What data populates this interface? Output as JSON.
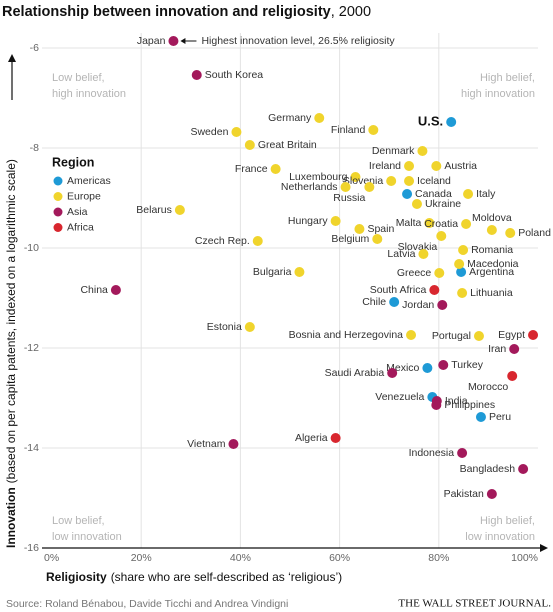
{
  "chart_data": {
    "type": "scatter",
    "title": "Relationship between innovation and religiosity",
    "title_suffix": ", 2000",
    "x_label": "Religiosity",
    "x_label_note": "(share who are self-described as ‘religious’)",
    "y_label": "Innovation",
    "y_label_note": "(based on per capita patents, indexed on a logarithmic scale)",
    "annotation": "Highest innovation level, 26.5% religiosity",
    "quadrant_labels": [
      [
        "Low belief,",
        "high innovation"
      ],
      [
        "High belief,",
        "high innovation"
      ],
      [
        "Low belief,",
        "low innovation"
      ],
      [
        "High belief,",
        "low innovation"
      ]
    ],
    "legend_title": "Region",
    "source": "Source: Roland Bénabou, Davide Ticchi and Andrea Vindigni",
    "publisher": "THE WALL STREET JOURNAL.",
    "xlim": [
      0,
      100
    ],
    "ylim": [
      -16,
      -5.7
    ],
    "xticks": [
      {
        "value": 0,
        "label": "0%"
      },
      {
        "value": 20,
        "label": "20%"
      },
      {
        "value": 40,
        "label": "40%"
      },
      {
        "value": 60,
        "label": "60%"
      },
      {
        "value": 80,
        "label": "80%"
      },
      {
        "value": 100,
        "label": "100%"
      }
    ],
    "yticks": [
      -6,
      -8,
      -10,
      -12,
      -14,
      -16
    ],
    "grid": true,
    "series": [
      {
        "name": "Americas",
        "color": "#1e9ad6",
        "labels": [
          "U.S.",
          "Canada",
          "Argentina",
          "Chile",
          "Mexico",
          "Venezuela",
          "Peru"
        ],
        "x": [
          82.5,
          73.6,
          84.5,
          71.0,
          77.7,
          78.7,
          88.5
        ],
        "values": [
          -7.48,
          -8.92,
          -10.48,
          -11.08,
          -12.4,
          -12.98,
          -13.38
        ]
      },
      {
        "name": "Europe",
        "color": "#f0d42c",
        "labels": [
          "Germany",
          "Finland",
          "Sweden",
          "Great Britain",
          "Denmark",
          "Ireland",
          "Austria",
          "France",
          "Luxembourg",
          "Slovenia",
          "Iceland",
          "Netherlands",
          "Russia",
          "Ukraine",
          "Italy",
          "Belarus",
          "Hungary",
          "Spain",
          "Malta",
          "Croatia",
          "Moldova",
          "Poland",
          "Belgium",
          "Slovakia",
          "Czech Rep.",
          "Latvia",
          "Romania",
          "Macedonia",
          "Greece",
          "Bulgaria",
          "Lithuania",
          "Estonia",
          "Bosnia and Herzegovina",
          "Portugal"
        ],
        "x": [
          55.9,
          66.8,
          39.2,
          41.9,
          76.7,
          74.0,
          79.5,
          47.1,
          63.2,
          70.4,
          74.0,
          61.2,
          66.0,
          75.6,
          85.9,
          27.8,
          59.2,
          64.0,
          78.1,
          85.5,
          90.7,
          94.4,
          67.6,
          80.5,
          43.5,
          76.9,
          84.9,
          84.1,
          80.1,
          51.9,
          84.7,
          41.9,
          74.4,
          88.1
        ],
        "values": [
          -7.4,
          -7.64,
          -7.68,
          -7.94,
          -8.06,
          -8.36,
          -8.36,
          -8.42,
          -8.58,
          -8.66,
          -8.66,
          -8.78,
          -8.78,
          -9.12,
          -8.92,
          -9.24,
          -9.46,
          -9.62,
          -9.5,
          -9.52,
          -9.64,
          -9.7,
          -9.82,
          -9.76,
          -9.86,
          -10.12,
          -10.04,
          -10.32,
          -10.5,
          -10.48,
          -10.9,
          -11.58,
          -11.74,
          -11.76
        ]
      },
      {
        "name": "Asia",
        "color": "#a3195b",
        "labels": [
          "Japan",
          "South Korea",
          "China",
          "Jordan",
          "Iran",
          "Turkey",
          "Saudi Arabia",
          "India",
          "Philippines",
          "Vietnam",
          "Indonesia",
          "Bangladesh",
          "Pakistan"
        ],
        "x": [
          26.5,
          31.2,
          14.9,
          80.7,
          95.2,
          80.9,
          70.6,
          79.6,
          79.5,
          38.6,
          84.7,
          97.0,
          90.7
        ],
        "values": [
          -5.86,
          -6.54,
          -10.84,
          -11.14,
          -12.02,
          -12.34,
          -12.5,
          -13.06,
          -13.14,
          -13.92,
          -14.1,
          -14.42,
          -14.92
        ]
      },
      {
        "name": "Africa",
        "color": "#d8262e",
        "labels": [
          "South Africa",
          "Egypt",
          "Morocco",
          "Algeria"
        ],
        "x": [
          79.1,
          99.0,
          94.8,
          59.2
        ],
        "values": [
          -10.84,
          -11.74,
          -12.56,
          -13.8
        ]
      }
    ]
  }
}
